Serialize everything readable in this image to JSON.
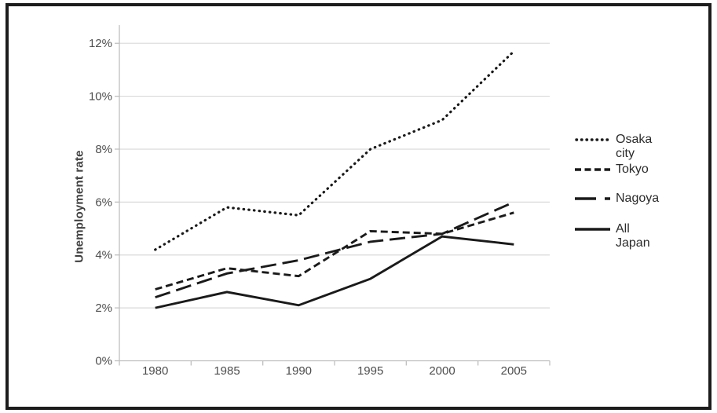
{
  "figure": {
    "background": "#ffffff",
    "border_color": "#1c1c1c"
  },
  "chart_data": {
    "type": "line",
    "title": "",
    "xlabel": "",
    "ylabel": "Unemployment rate",
    "categories": [
      "1980",
      "1985",
      "1990",
      "1995",
      "2000",
      "2005"
    ],
    "y_ticks": [
      "0%",
      "2%",
      "4%",
      "6%",
      "8%",
      "10%",
      "12%"
    ],
    "ylim": [
      0,
      12
    ],
    "grid": "horizontal",
    "legend_position": "right",
    "line_color": "#1a1a1a",
    "gridline_color": "#d9d9d9",
    "axis_color": "#bfbfbf",
    "tick_label_color": "#4d4d4d",
    "series": [
      {
        "name": "Osaka city",
        "style": "dotted",
        "values": [
          4.2,
          5.8,
          5.5,
          8.0,
          9.1,
          11.7
        ]
      },
      {
        "name": "Tokyo",
        "style": "dashed",
        "values": [
          2.7,
          3.5,
          3.2,
          4.9,
          4.8,
          5.6
        ]
      },
      {
        "name": "Nagoya",
        "style": "long-dash",
        "values": [
          2.4,
          3.3,
          3.8,
          4.5,
          4.8,
          6.0
        ]
      },
      {
        "name": "All Japan",
        "style": "solid",
        "values": [
          2.0,
          2.6,
          2.1,
          3.1,
          4.7,
          4.4
        ]
      }
    ]
  },
  "legend": {
    "items": [
      {
        "label": "Osaka city"
      },
      {
        "label": "Tokyo"
      },
      {
        "label": "Nagoya"
      },
      {
        "label": "All Japan"
      }
    ]
  }
}
